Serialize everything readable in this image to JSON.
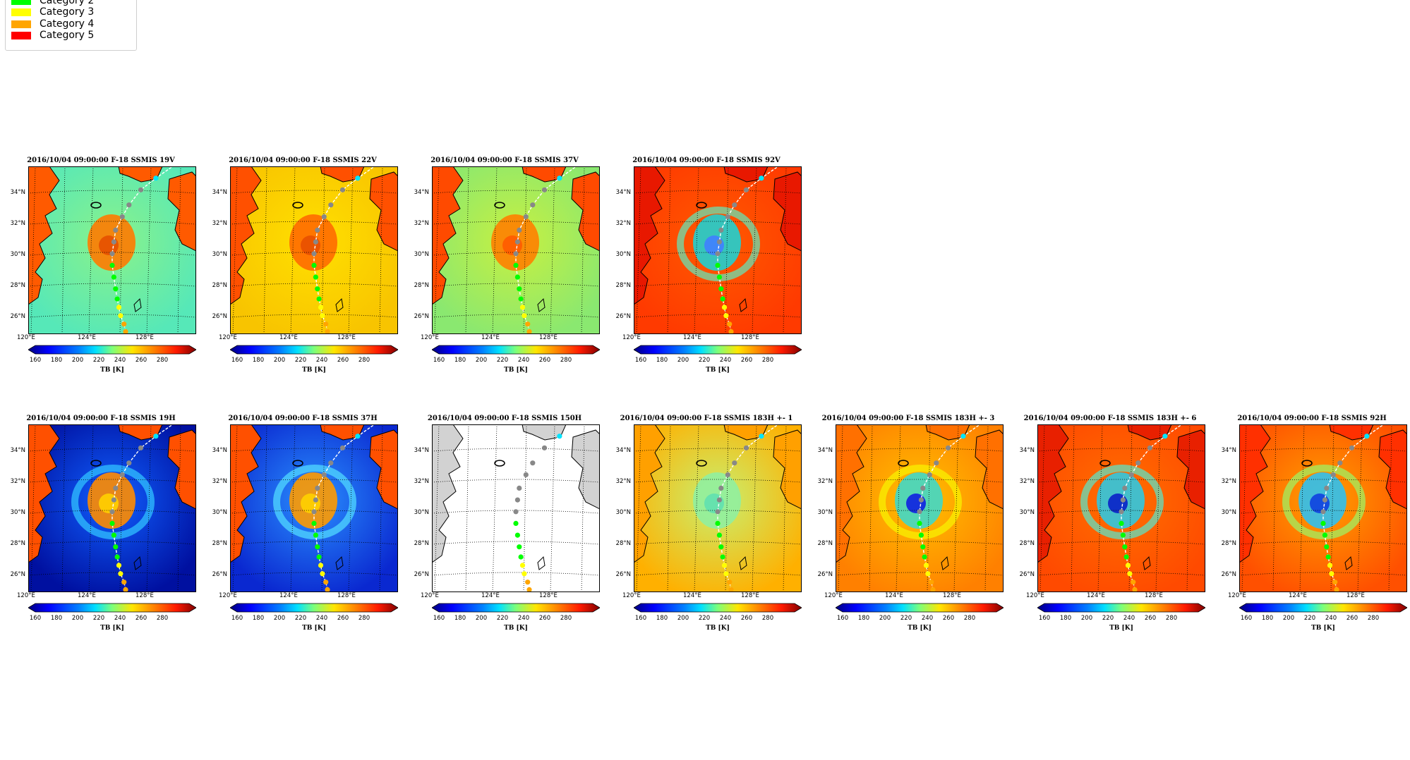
{
  "legend": {
    "items": [
      {
        "label": "Category 2",
        "color": "#00ff00"
      },
      {
        "label": "Category 3",
        "color": "#ffff00"
      },
      {
        "label": "Category 4",
        "color": "#ffa500"
      },
      {
        "label": "Category 5",
        "color": "#ff0000"
      }
    ]
  },
  "axes": {
    "lat_labels": [
      "34°N",
      "32°N",
      "30°N",
      "28°N",
      "26°N"
    ],
    "lon_labels": [
      "120°E",
      "124°E",
      "128°E"
    ],
    "colorbar_ticks": [
      "160",
      "180",
      "200",
      "220",
      "240",
      "260",
      "280"
    ],
    "colorbar_label": "TB [K]"
  },
  "panels": [
    {
      "title": "2016/10/04 09:00:00  F-18 SSMIS 19V",
      "scheme": "v19"
    },
    {
      "title": "2016/10/04 09:00:00  F-18 SSMIS 22V",
      "scheme": "v22"
    },
    {
      "title": "2016/10/04 09:00:00  F-18 SSMIS 37V",
      "scheme": "v37"
    },
    {
      "title": "2016/10/04 09:00:00  F-18 SSMIS 92V",
      "scheme": "v92"
    },
    {
      "title": "2016/10/04 09:00:00  F-18 SSMIS 19H",
      "scheme": "h19"
    },
    {
      "title": "2016/10/04 09:00:00  F-18 SSMIS 37H",
      "scheme": "h37"
    },
    {
      "title": "2016/10/04 09:00:00  F-18 SSMIS 150H",
      "scheme": "h150"
    },
    {
      "title": "2016/10/04 09:00:00  F-18 SSMIS 183H +- 1",
      "scheme": "h183a"
    },
    {
      "title": "2016/10/04 09:00:00  F-18 SSMIS 183H +- 3",
      "scheme": "h183b"
    },
    {
      "title": "2016/10/04 09:00:00  F-18 SSMIS 183H +- 6",
      "scheme": "h183c"
    },
    {
      "title": "2016/10/04 09:00:00  F-18 SSMIS 92H",
      "scheme": "h92"
    }
  ],
  "colors": {
    "track_line": "#ffffff",
    "track_gray": "#888888",
    "track_cyan": "#00e5ff"
  }
}
